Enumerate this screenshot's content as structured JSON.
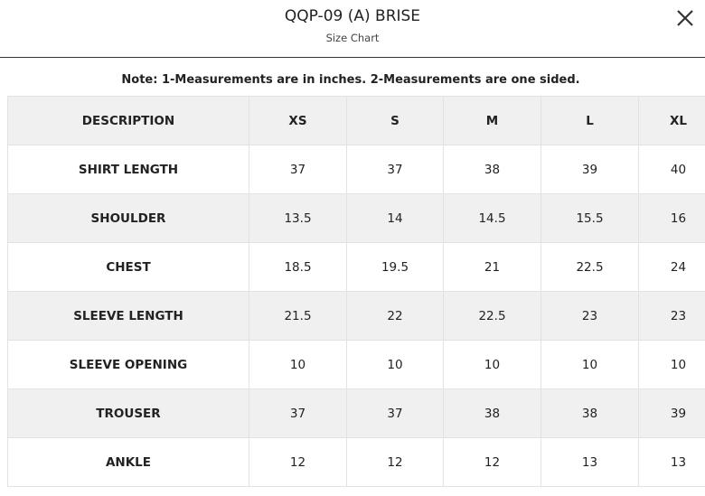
{
  "header": {
    "title": "QQP-09 (A) BRISE",
    "subtitle": "Size Chart"
  },
  "note": "Note: 1-Measurements are in inches. 2-Measurements are one sided.",
  "table": {
    "columns": [
      "DESCRIPTION",
      "XS",
      "S",
      "M",
      "L",
      "XL"
    ],
    "rows": [
      [
        "SHIRT LENGTH",
        37,
        37,
        38,
        39,
        40
      ],
      [
        "SHOULDER",
        13.5,
        14,
        14.5,
        15.5,
        16
      ],
      [
        "CHEST",
        18.5,
        19.5,
        21,
        22.5,
        24
      ],
      [
        "SLEEVE LENGTH",
        21.5,
        22,
        22.5,
        23,
        23
      ],
      [
        "SLEEVE OPENING",
        10,
        10,
        10,
        10,
        10
      ],
      [
        "TROUSER",
        37,
        37,
        38,
        38,
        39
      ],
      [
        "ANKLE",
        12,
        12,
        12,
        13,
        13
      ]
    ]
  }
}
